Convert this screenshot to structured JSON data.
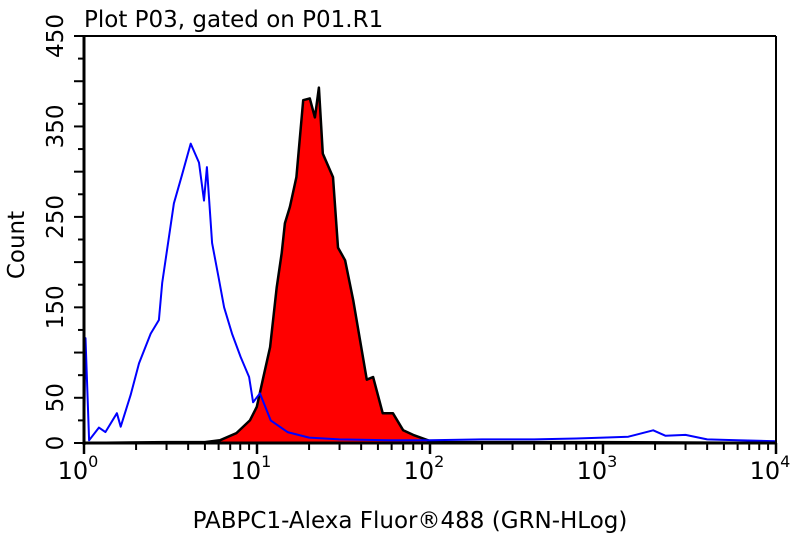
{
  "chart_data": {
    "type": "area",
    "title": "Plot P03, gated on P01.R1",
    "xlabel": "PABPC1-Alexa Fluor®488 (GRN-HLog)",
    "ylabel": "Count",
    "x_scale": "log",
    "xlim": [
      1,
      10000
    ],
    "ylim": [
      0,
      450
    ],
    "x_ticks": [
      {
        "base": "10",
        "exp": "0",
        "value": 1
      },
      {
        "base": "10",
        "exp": "1",
        "value": 10
      },
      {
        "base": "10",
        "exp": "2",
        "value": 100
      },
      {
        "base": "10",
        "exp": "3",
        "value": 1000
      },
      {
        "base": "10",
        "exp": "4",
        "value": 10000
      }
    ],
    "y_ticks": [
      "0",
      "50",
      "150",
      "250",
      "350",
      "450"
    ],
    "y_tick_values": [
      0,
      50,
      150,
      250,
      350,
      450
    ],
    "grid": false,
    "series": [
      {
        "color": "#0000ff",
        "fill": "none",
        "x": [
          1.0,
          1.02,
          1.07,
          1.22,
          1.33,
          1.55,
          1.63,
          1.86,
          2.08,
          2.43,
          2.71,
          2.83,
          3.31,
          3.68,
          4.14,
          4.62,
          4.94,
          5.13,
          5.5,
          6.0,
          6.45,
          7.17,
          8.05,
          9.0,
          9.5,
          10.4,
          12,
          15,
          20,
          30,
          60,
          100,
          200,
          400,
          700,
          1000,
          1400,
          1950,
          2300,
          3000,
          4000,
          6000,
          10000
        ],
        "y": [
          0,
          116,
          3,
          17,
          12,
          33,
          18,
          53,
          88,
          121,
          136,
          177,
          265,
          296,
          331,
          310,
          268,
          305,
          221,
          183,
          150,
          121,
          95,
          73,
          45,
          55,
          25,
          12,
          6,
          4,
          3,
          3,
          4,
          4,
          5,
          6,
          7,
          14,
          8,
          9,
          4,
          3,
          2
        ]
      },
      {
        "color": "#ff0000",
        "outline": "#000000",
        "fill": "#ff0000",
        "x": [
          1.0,
          3.0,
          5.0,
          6.1,
          7.6,
          9.1,
          9.97,
          10.8,
          11.9,
          13.0,
          13.9,
          14.5,
          15.5,
          16.9,
          18.5,
          20.2,
          21.6,
          22.8,
          24.0,
          27.5,
          29.4,
          32.3,
          36,
          39.4,
          43.1,
          46.9,
          53.3,
          61,
          70,
          80,
          104,
          200,
          1000,
          10000
        ],
        "y": [
          0,
          1,
          1,
          3,
          11,
          25,
          40,
          70,
          106,
          172,
          210,
          243,
          261,
          294,
          379,
          381,
          360,
          393,
          320,
          294,
          216,
          202,
          158,
          114,
          70,
          73,
          33,
          33,
          14,
          9,
          1,
          1,
          1,
          0
        ]
      }
    ]
  }
}
